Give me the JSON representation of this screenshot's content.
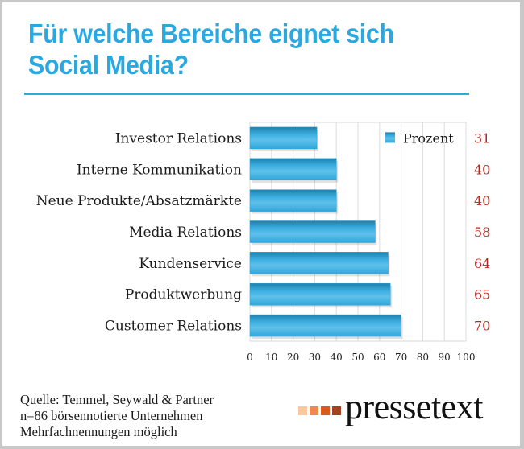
{
  "title": "Für welche Bereiche eignet sich Social Media?",
  "chart_data": {
    "type": "bar",
    "orientation": "horizontal",
    "title": "Für welche Bereiche eignet sich Social Media?",
    "categories": [
      "Investor Relations",
      "Interne Kommunikation",
      "Neue Produkte/Absatzmärkte",
      "Media Relations",
      "Kundenservice",
      "Produktwerbung",
      "Customer Relations"
    ],
    "series": [
      {
        "name": "Prozent",
        "values": [
          31,
          40,
          40,
          58,
          64,
          65,
          70
        ]
      }
    ],
    "value_labels": [
      "31",
      "40",
      "40",
      "58",
      "64",
      "65",
      "70"
    ],
    "xlabel": "",
    "ylabel": "",
    "xlim": [
      0,
      100
    ],
    "x_ticks": [
      "0",
      "10",
      "20",
      "30",
      "40",
      "50",
      "60",
      "70",
      "80",
      "90",
      "100"
    ],
    "grid": true,
    "legend": {
      "position": "top-right",
      "entries": [
        "Prozent"
      ]
    },
    "colors": {
      "bar": "#2fa7dc",
      "bar_dark": "#1f7fab",
      "value_label": "#b22a22"
    }
  },
  "footer": {
    "lines": [
      "Quelle: Temmel, Seywald & Partner",
      "n=86 börsennotierte Unternehmen",
      "Mehrfachnennungen möglich"
    ]
  },
  "logo": {
    "text": "pressetext",
    "squares": [
      "#f8c9a0",
      "#ec8a52",
      "#d75a1f",
      "#a3431f"
    ]
  },
  "colors": {
    "title": "#2aa8df",
    "rule": "#2aa8df"
  }
}
